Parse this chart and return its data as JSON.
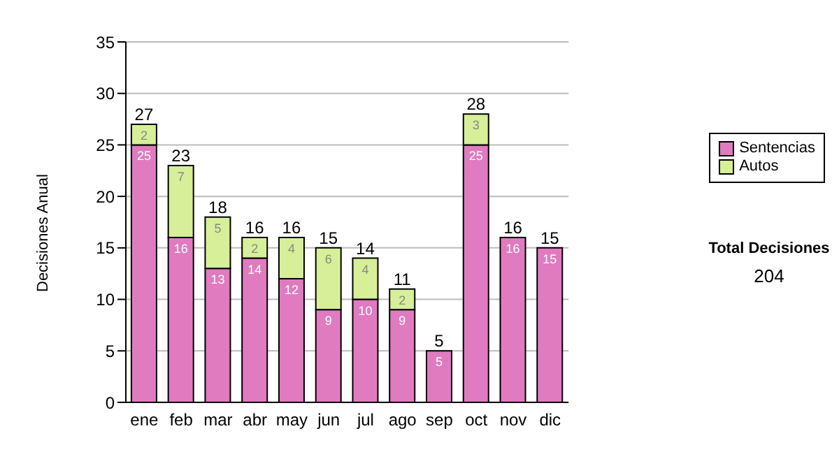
{
  "chart_data": {
    "type": "bar",
    "stacked": true,
    "ylabel": "Decisiones Anual",
    "categories": [
      "ene",
      "feb",
      "mar",
      "abr",
      "may",
      "jun",
      "jul",
      "ago",
      "sep",
      "oct",
      "nov",
      "dic"
    ],
    "series": [
      {
        "name": "Sentencias",
        "color": "#e07bbf",
        "values": [
          25,
          16,
          13,
          14,
          12,
          9,
          10,
          9,
          5,
          25,
          16,
          15
        ],
        "value_labels": [
          "25",
          "16",
          "13",
          "14",
          "12",
          "9",
          "10",
          "9",
          "5",
          "25",
          "16",
          "15"
        ]
      },
      {
        "name": "Autos",
        "color": "#d6ef98",
        "values": [
          2,
          7,
          5,
          2,
          4,
          6,
          4,
          2,
          0,
          3,
          0,
          0
        ],
        "value_labels": [
          "2",
          "7",
          "5",
          "2",
          "4",
          "6",
          "4",
          "2",
          null,
          "3",
          null,
          null
        ]
      }
    ],
    "totals": [
      "27",
      "23",
      "18",
      "16",
      "16",
      "15",
      "14",
      "11",
      "5",
      "28",
      "16",
      "15"
    ],
    "ylim": [
      0,
      35
    ],
    "yticks": [
      0,
      5,
      10,
      15,
      20,
      25,
      30,
      35
    ],
    "grid": "y",
    "legend": "right",
    "annotations": [
      "Total Decisiones",
      "204"
    ]
  }
}
